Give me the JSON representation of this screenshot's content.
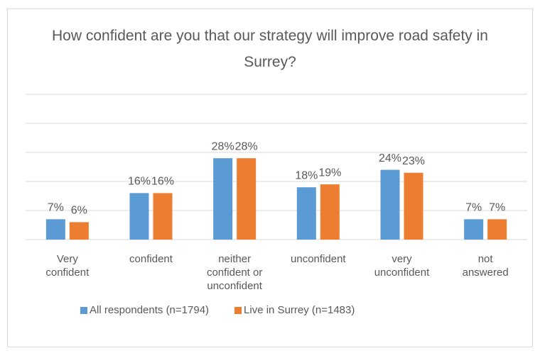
{
  "chart_data": {
    "type": "bar",
    "title": "How confident are you that our strategy will improve road safety in Surrey?",
    "categories": [
      "Very\nconfident",
      "confident",
      "neither\nconfident or\nunconfident",
      "unconfident",
      "very\nunconfident",
      "not\nanswered"
    ],
    "series": [
      {
        "name": "All respondents (n=1794)",
        "color": "#5b9bd5",
        "values": [
          7,
          16,
          28,
          18,
          24,
          7
        ],
        "value_labels": [
          "7%",
          "16%",
          "28%",
          "18%",
          "24%",
          "7%"
        ]
      },
      {
        "name": "Live in Surrey (n=1483)",
        "color": "#ed7d31",
        "values": [
          6,
          16,
          28,
          19,
          23,
          7
        ],
        "value_labels": [
          "6%",
          "16%",
          "28%",
          "19%",
          "23%",
          "7%"
        ]
      }
    ],
    "ylim": [
      0,
      50
    ],
    "yticks": [
      0,
      10,
      20,
      30,
      40,
      50
    ],
    "grid": true,
    "legend": "bottom"
  }
}
